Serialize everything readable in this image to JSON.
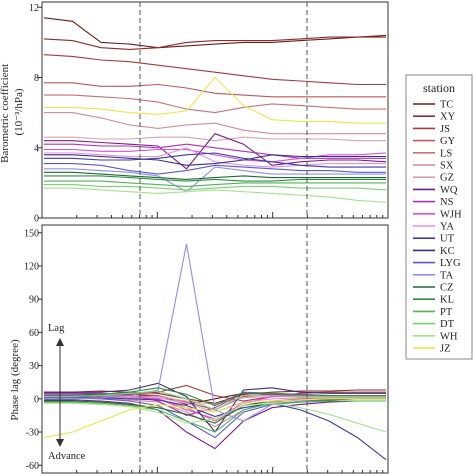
{
  "chart_data": [
    {
      "type": "line",
      "ylabel": "Barometric coefficient\n(10⁻³/hPa)",
      "yticks": [
        0,
        4,
        8,
        12
      ],
      "ylim": [
        0,
        12.3
      ],
      "xscale": "log",
      "vlines_dashed": 2,
      "series": [
        {
          "name": "TC",
          "values": [
            11.4,
            11.2,
            10.0,
            9.9,
            9.7,
            9.8,
            9.9,
            10.0,
            10.0,
            10.1,
            10.2,
            10.3,
            10.4
          ]
        },
        {
          "name": "XY",
          "values": [
            10.2,
            10.1,
            9.7,
            9.6,
            9.7,
            10.0,
            10.1,
            10.1,
            10.1,
            10.2,
            10.3,
            10.3,
            10.3
          ]
        },
        {
          "name": "JS",
          "values": [
            9.3,
            9.2,
            9.0,
            8.9,
            8.7,
            8.5,
            8.3,
            8.1,
            7.9,
            7.8,
            7.7,
            7.6,
            7.6
          ]
        },
        {
          "name": "GY",
          "values": [
            7.7,
            7.7,
            7.5,
            7.5,
            7.6,
            7.4,
            7.1,
            7.0,
            6.9,
            6.9,
            6.9,
            6.9,
            6.9
          ]
        },
        {
          "name": "LS",
          "values": [
            7.0,
            7.0,
            6.9,
            6.8,
            6.6,
            6.2,
            6.0,
            6.3,
            6.5,
            6.4,
            6.3,
            6.2,
            6.2
          ]
        },
        {
          "name": "SX",
          "values": [
            6.0,
            6.0,
            5.7,
            5.3,
            5.1,
            5.3,
            5.4,
            5.0,
            4.8,
            4.8,
            4.8,
            4.8,
            4.8
          ]
        },
        {
          "name": "GZ",
          "values": [
            4.6,
            4.6,
            4.5,
            4.5,
            4.6,
            4.6,
            4.4,
            4.6,
            4.5,
            4.5,
            4.5,
            4.4,
            4.4
          ]
        },
        {
          "name": "WQ",
          "values": [
            4.4,
            4.4,
            4.3,
            4.2,
            4.1,
            2.8,
            4.8,
            4.2,
            3.0,
            3.2,
            3.3,
            3.3,
            3.2
          ]
        },
        {
          "name": "NS",
          "values": [
            4.2,
            4.2,
            4.1,
            4.1,
            4.0,
            4.2,
            4.0,
            3.8,
            3.6,
            3.4,
            3.4,
            3.4,
            3.4
          ]
        },
        {
          "name": "WJH",
          "values": [
            3.9,
            3.9,
            3.8,
            3.8,
            3.9,
            3.9,
            3.6,
            3.3,
            3.2,
            3.4,
            3.6,
            3.6,
            3.7
          ]
        },
        {
          "name": "YA",
          "values": [
            3.7,
            3.7,
            3.6,
            3.5,
            3.5,
            4.0,
            3.2,
            3.0,
            2.9,
            3.0,
            3.1,
            3.1,
            3.1
          ]
        },
        {
          "name": "UT",
          "values": [
            3.4,
            3.4,
            3.3,
            3.3,
            3.4,
            3.6,
            3.7,
            3.4,
            3.2,
            3.0,
            2.9,
            2.9,
            2.9
          ]
        },
        {
          "name": "KC",
          "values": [
            3.6,
            3.6,
            3.5,
            3.4,
            3.3,
            3.0,
            3.1,
            3.3,
            3.6,
            3.5,
            3.5,
            3.5,
            3.5
          ]
        },
        {
          "name": "LYG",
          "values": [
            3.1,
            3.1,
            3.0,
            2.7,
            2.5,
            2.7,
            3.0,
            2.9,
            2.8,
            2.7,
            2.7,
            2.6,
            2.6
          ]
        },
        {
          "name": "TA",
          "values": [
            2.8,
            2.8,
            2.7,
            2.6,
            2.4,
            1.5,
            2.9,
            2.7,
            2.5,
            2.5,
            2.5,
            2.5,
            2.5
          ]
        },
        {
          "name": "CZ",
          "values": [
            2.6,
            2.6,
            2.5,
            2.4,
            2.3,
            2.2,
            2.3,
            2.4,
            2.3,
            2.3,
            2.3,
            2.3,
            2.3
          ]
        },
        {
          "name": "KL",
          "values": [
            2.4,
            2.4,
            2.4,
            2.3,
            2.2,
            2.1,
            2.2,
            2.1,
            2.1,
            2.2,
            2.2,
            2.2,
            2.2
          ]
        },
        {
          "name": "PT",
          "values": [
            2.1,
            2.1,
            2.1,
            2.0,
            1.9,
            1.8,
            1.9,
            2.0,
            2.0,
            2.0,
            2.0,
            2.0,
            2.0
          ]
        },
        {
          "name": "DT",
          "values": [
            1.9,
            1.9,
            1.8,
            1.8,
            1.7,
            1.6,
            1.7,
            1.8,
            1.8,
            1.7,
            1.7,
            1.7,
            1.6
          ]
        },
        {
          "name": "WH",
          "values": [
            1.7,
            1.7,
            1.6,
            1.5,
            1.4,
            1.5,
            1.6,
            1.5,
            1.4,
            1.3,
            1.2,
            1.0,
            0.9
          ]
        },
        {
          "name": "JZ",
          "values": [
            6.3,
            6.3,
            6.2,
            6.0,
            5.9,
            6.1,
            8.0,
            6.4,
            5.6,
            5.5,
            5.5,
            5.4,
            5.4
          ]
        }
      ]
    },
    {
      "type": "line",
      "ylabel": "Phase lag (degree)",
      "yticks": [
        -60,
        -30,
        0,
        30,
        60,
        90,
        120,
        150
      ],
      "ylim": [
        -67,
        157
      ],
      "xscale": "log",
      "vlines_dashed": 2,
      "annotations": [
        "Lag",
        "Advance"
      ],
      "series": [
        {
          "name": "TC",
          "values": [
            5,
            5,
            4,
            4,
            3,
            -5,
            0,
            5,
            4,
            3,
            2,
            1,
            0
          ]
        },
        {
          "name": "XY",
          "values": [
            6,
            6,
            7,
            6,
            5,
            0,
            -4,
            4,
            6,
            7,
            7,
            8,
            8
          ]
        },
        {
          "name": "JS",
          "values": [
            4,
            4,
            3,
            4,
            6,
            12,
            3,
            -2,
            2,
            5,
            6,
            6,
            6
          ]
        },
        {
          "name": "GY",
          "values": [
            3,
            3,
            2,
            2,
            3,
            -3,
            -10,
            2,
            4,
            4,
            3,
            3,
            3
          ]
        },
        {
          "name": "LS",
          "values": [
            2,
            2,
            1,
            1,
            0,
            -8,
            -20,
            -6,
            -2,
            0,
            1,
            1,
            1
          ]
        },
        {
          "name": "SX",
          "values": [
            1,
            1,
            0,
            -1,
            -3,
            -12,
            -25,
            -10,
            -3,
            -1,
            0,
            0,
            0
          ]
        },
        {
          "name": "GZ",
          "values": [
            0,
            0,
            0,
            1,
            2,
            -2,
            -5,
            1,
            2,
            2,
            2,
            2,
            2
          ]
        },
        {
          "name": "WQ",
          "values": [
            -1,
            -1,
            -2,
            -4,
            -10,
            -30,
            -45,
            -20,
            -8,
            -5,
            -3,
            -2,
            -2
          ]
        },
        {
          "name": "NS",
          "values": [
            5,
            5,
            5,
            3,
            -2,
            -15,
            -8,
            5,
            4,
            3,
            2,
            2,
            2
          ]
        },
        {
          "name": "WJH",
          "values": [
            4,
            4,
            3,
            2,
            0,
            -10,
            -18,
            -4,
            2,
            3,
            3,
            3,
            3
          ]
        },
        {
          "name": "YA",
          "values": [
            3,
            3,
            3,
            2,
            1,
            -4,
            -12,
            -3,
            0,
            1,
            1,
            1,
            1
          ]
        },
        {
          "name": "UT",
          "values": [
            2,
            2,
            1,
            0,
            -1,
            -6,
            -16,
            -8,
            -4,
            -10,
            -20,
            -35,
            -55
          ]
        },
        {
          "name": "KC",
          "values": [
            6,
            6,
            6,
            8,
            14,
            2,
            -30,
            8,
            10,
            6,
            5,
            5,
            5
          ]
        },
        {
          "name": "LYG",
          "values": [
            1,
            1,
            0,
            -2,
            -6,
            -20,
            -35,
            -12,
            -5,
            -3,
            -2,
            -2,
            -2
          ]
        },
        {
          "name": "TA",
          "values": [
            0,
            0,
            1,
            3,
            8,
            140,
            -10,
            -20,
            -5,
            -2,
            -1,
            0,
            0
          ]
        },
        {
          "name": "CZ",
          "values": [
            -2,
            -2,
            -3,
            -5,
            -8,
            -14,
            -22,
            -6,
            -2,
            -1,
            -1,
            0,
            0
          ]
        },
        {
          "name": "KL",
          "values": [
            3,
            3,
            4,
            6,
            10,
            4,
            -6,
            6,
            5,
            4,
            3,
            3,
            3
          ]
        },
        {
          "name": "PT",
          "values": [
            -3,
            -3,
            -4,
            -6,
            -10,
            -20,
            -30,
            -10,
            -4,
            -3,
            -2,
            -2,
            -2
          ]
        },
        {
          "name": "DT",
          "values": [
            2,
            2,
            3,
            5,
            7,
            0,
            -10,
            3,
            3,
            2,
            2,
            2,
            2
          ]
        },
        {
          "name": "WH",
          "values": [
            -4,
            -4,
            -5,
            -7,
            -12,
            -22,
            -18,
            -6,
            -4,
            -8,
            -14,
            -22,
            -30
          ]
        },
        {
          "name": "JZ",
          "values": [
            -35,
            -30,
            -20,
            -10,
            -5,
            -8,
            -12,
            -4,
            -2,
            -1,
            0,
            0,
            0
          ]
        }
      ]
    }
  ],
  "legend": {
    "title": "station",
    "items": [
      {
        "label": "TC",
        "color": "#6b1d1d"
      },
      {
        "label": "XY",
        "color": "#8e2a2a"
      },
      {
        "label": "JS",
        "color": "#a8393d"
      },
      {
        "label": "GY",
        "color": "#c0565a"
      },
      {
        "label": "LS",
        "color": "#c97276"
      },
      {
        "label": "SX",
        "color": "#d98a94"
      },
      {
        "label": "GZ",
        "color": "#d8a2ae"
      },
      {
        "label": "WQ",
        "color": "#7a1e86"
      },
      {
        "label": "NS",
        "color": "#b12fb8"
      },
      {
        "label": "WJH",
        "color": "#d94fd8"
      },
      {
        "label": "YA",
        "color": "#e58ee8"
      },
      {
        "label": "UT",
        "color": "#3a3aa8"
      },
      {
        "label": "KC",
        "color": "#3b2f7f"
      },
      {
        "label": "LYG",
        "color": "#5a5ad0"
      },
      {
        "label": "TA",
        "color": "#8f8ff0"
      },
      {
        "label": "CZ",
        "color": "#1e6b2e"
      },
      {
        "label": "KL",
        "color": "#2d8f3e"
      },
      {
        "label": "PT",
        "color": "#4fb556"
      },
      {
        "label": "DT",
        "color": "#7fcf74"
      },
      {
        "label": "WH",
        "color": "#a8e28f"
      },
      {
        "label": "JZ",
        "color": "#e8e84a"
      }
    ]
  }
}
